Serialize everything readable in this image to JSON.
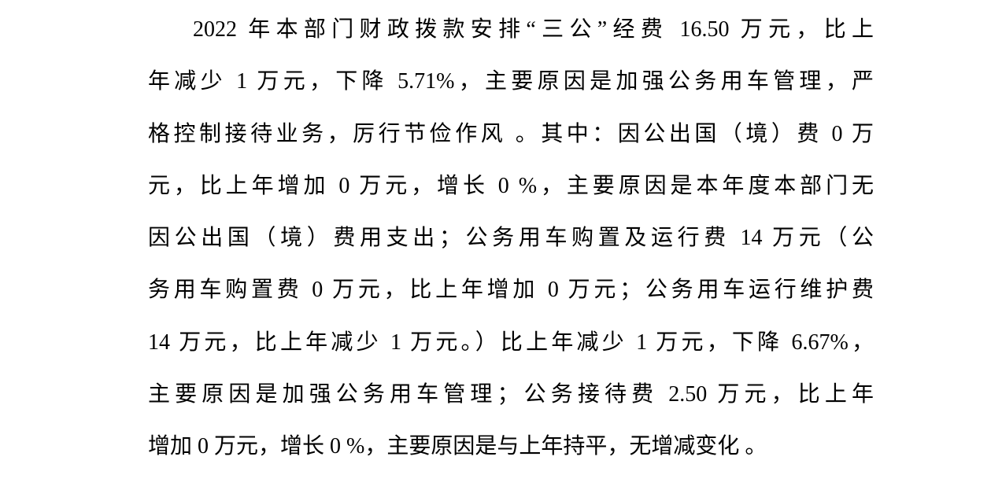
{
  "page": {
    "background_color": "#ffffff",
    "text_color": "#000000"
  },
  "document": {
    "lines": [
      {
        "text": "2022 年本部门财政拨款安排“三公”经费 16.50 万元，比上"
      },
      {
        "text": "年减少 1 万元，下降 5.71%，主要原因是加强公务用车管理，严"
      },
      {
        "text": "格控制接待业务，厉行节俭作风 。其中：因公出国（境）费 0 万"
      },
      {
        "text": "元，比上年增加 0 万元，增长 0 %，主要原因是本年度本部门无"
      },
      {
        "text": "因公出国（境）费用支出；公务用车购置及运行费 14 万元（公"
      },
      {
        "text": "务用车购置费 0 万元，比上年增加 0 万元；公务用车运行维护费"
      },
      {
        "text": "14 万元，比上年减少 1 万元。）比上年减少 1 万元，下降 6.67%，"
      },
      {
        "text": "主要原因是加强公务用车管理；公务接待费 2.50 万元，比上年"
      },
      {
        "text": "增加 0 万元，增长 0 %，主要原因是与上年持平，无增减变化 。"
      }
    ]
  }
}
